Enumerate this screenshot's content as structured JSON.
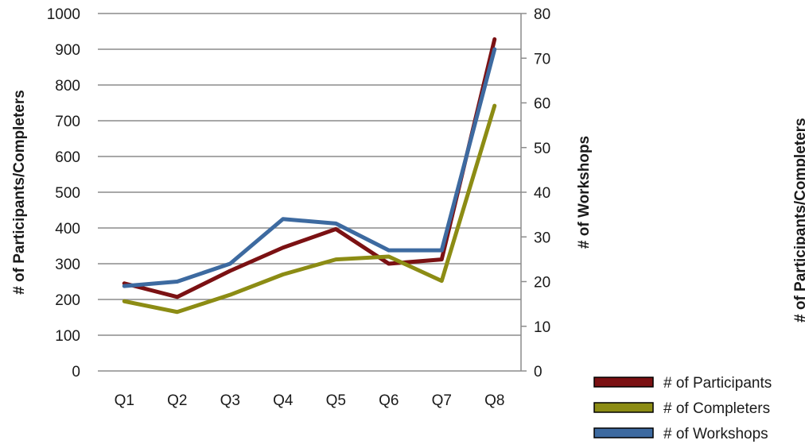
{
  "chart_data": {
    "type": "line",
    "title": "",
    "categories": [
      "Q1",
      "Q2",
      "Q3",
      "Q4",
      "Q5",
      "Q6",
      "Q7",
      "Q8"
    ],
    "y_left": {
      "label": "# of Participants/Completers",
      "min": 0,
      "max": 1000,
      "step": 100
    },
    "y_right": {
      "label": "# of Workshops",
      "min": 0,
      "max": 80,
      "step": 10
    },
    "grid": true,
    "legend_position": "bottom-right",
    "series": [
      {
        "name": "# of Participants",
        "axis": "left",
        "color": "#7b1113",
        "values": [
          245,
          207,
          280,
          345,
          397,
          300,
          312,
          928
        ]
      },
      {
        "name": "# of Completers",
        "axis": "left",
        "color": "#8c8c14",
        "values": [
          195,
          165,
          213,
          270,
          312,
          320,
          252,
          742
        ]
      },
      {
        "name": "# of Workshops",
        "axis": "right",
        "color": "#3d6aa0",
        "values": [
          19,
          20,
          24,
          34,
          33,
          27,
          27,
          72
        ]
      }
    ],
    "clipped_label": "# of Participants/Completers"
  }
}
